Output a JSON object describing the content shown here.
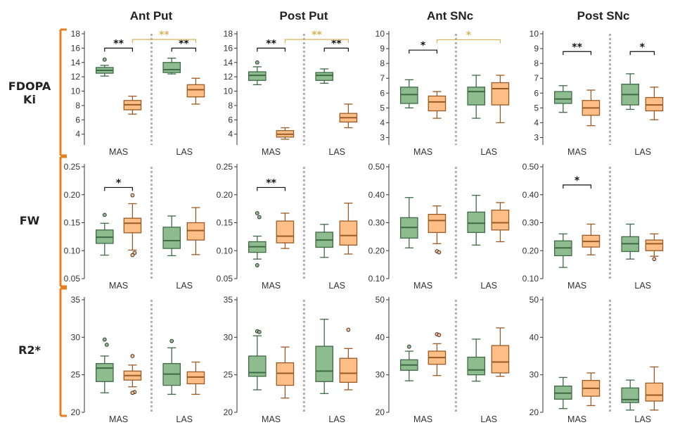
{
  "columns": [
    "Ant Put",
    "Post Put",
    "Ant SNc",
    "Post SNc"
  ],
  "row_label_lines": [
    [
      "FDOPA",
      "Ki"
    ],
    [
      "FW"
    ],
    [
      "R2*"
    ]
  ],
  "colors": {
    "MAS": {
      "fill": "#8fbc8f",
      "stroke": "#3d6b45"
    },
    "LAS": {
      "fill": "#fdbf86",
      "stroke": "#9a5a26"
    },
    "row_bracket": "#e5801f",
    "between_group_sig": "#d9b25a",
    "within_group_sig": "#111111",
    "divider": "#b0b0b0"
  },
  "chart_data": [
    {
      "type": "box",
      "row": "FDOPA Ki",
      "column": "Ant Put",
      "ylim": [
        2.5,
        18
      ],
      "yticks": [
        "4",
        "6",
        "8",
        "10",
        "12",
        "14",
        "16",
        "18"
      ],
      "groups": [
        "MAS",
        "LAS"
      ],
      "boxes": [
        {
          "group": "MAS",
          "series": "MAS",
          "min": 12.1,
          "q1": 12.5,
          "median": 12.9,
          "q3": 13.3,
          "max": 13.6,
          "outliers": [
            14.4
          ]
        },
        {
          "group": "MAS",
          "series": "LAS",
          "min": 6.8,
          "q1": 7.4,
          "median": 8.1,
          "q3": 8.7,
          "max": 9.3,
          "outliers": []
        },
        {
          "group": "LAS",
          "series": "MAS",
          "min": 12.4,
          "q1": 12.6,
          "median": 13.0,
          "q3": 14.0,
          "max": 14.6,
          "outliers": []
        },
        {
          "group": "LAS",
          "series": "LAS",
          "min": 8.2,
          "q1": 9.2,
          "median": 10.2,
          "q3": 10.9,
          "max": 11.8,
          "outliers": []
        }
      ],
      "annotations": [
        {
          "text": "**",
          "between": "MAS: MAS vs LAS",
          "style": "within",
          "y": 16.0
        },
        {
          "text": "**",
          "between": "LAS: MAS vs LAS",
          "style": "within",
          "y": 16.0
        },
        {
          "text": "**",
          "between": "MAS-LAS vs LAS-LAS",
          "style": "between",
          "y": 17.2
        }
      ]
    },
    {
      "type": "box",
      "row": "FDOPA Ki",
      "column": "Post Put",
      "ylim": [
        2.5,
        18
      ],
      "yticks": [
        "4",
        "6",
        "8",
        "10",
        "12",
        "14",
        "16",
        "18"
      ],
      "groups": [
        "MAS",
        "LAS"
      ],
      "boxes": [
        {
          "group": "MAS",
          "series": "MAS",
          "min": 10.9,
          "q1": 11.5,
          "median": 12.2,
          "q3": 12.7,
          "max": 13.4,
          "outliers": [
            14.0
          ]
        },
        {
          "group": "MAS",
          "series": "LAS",
          "min": 3.3,
          "q1": 3.6,
          "median": 4.0,
          "q3": 4.5,
          "max": 4.9,
          "outliers": []
        },
        {
          "group": "LAS",
          "series": "MAS",
          "min": 11.1,
          "q1": 11.5,
          "median": 12.2,
          "q3": 12.6,
          "max": 13.1,
          "outliers": []
        },
        {
          "group": "LAS",
          "series": "LAS",
          "min": 4.9,
          "q1": 5.7,
          "median": 6.3,
          "q3": 6.9,
          "max": 8.2,
          "outliers": []
        }
      ],
      "annotations": [
        {
          "text": "**",
          "between": "MAS: MAS vs LAS",
          "style": "within",
          "y": 16.0
        },
        {
          "text": "**",
          "between": "LAS: MAS vs LAS",
          "style": "within",
          "y": 16.0
        },
        {
          "text": "**",
          "between": "MAS-LAS vs LAS-LAS",
          "style": "between",
          "y": 17.2
        }
      ]
    },
    {
      "type": "box",
      "row": "FDOPA Ki",
      "column": "Ant SNc",
      "ylim": [
        2.5,
        10
      ],
      "yticks": [
        "3",
        "4",
        "5",
        "6",
        "7",
        "8",
        "9",
        "10"
      ],
      "groups": [
        "MAS",
        "LAS"
      ],
      "boxes": [
        {
          "group": "MAS",
          "series": "MAS",
          "min": 5.0,
          "q1": 5.3,
          "median": 5.9,
          "q3": 6.4,
          "max": 6.9,
          "outliers": []
        },
        {
          "group": "MAS",
          "series": "LAS",
          "min": 4.3,
          "q1": 4.8,
          "median": 5.4,
          "q3": 5.8,
          "max": 6.1,
          "outliers": []
        },
        {
          "group": "LAS",
          "series": "MAS",
          "min": 4.3,
          "q1": 5.2,
          "median": 6.1,
          "q3": 6.4,
          "max": 7.2,
          "outliers": []
        },
        {
          "group": "LAS",
          "series": "LAS",
          "min": 4.0,
          "q1": 5.2,
          "median": 6.3,
          "q3": 6.7,
          "max": 7.2,
          "outliers": []
        }
      ],
      "annotations": [
        {
          "text": "*",
          "between": "MAS: MAS vs LAS",
          "style": "within",
          "y": 8.9
        },
        {
          "text": "*",
          "between": "MAS-LAS vs LAS-LAS",
          "style": "between",
          "y": 9.6
        }
      ]
    },
    {
      "type": "box",
      "row": "FDOPA Ki",
      "column": "Post SNc",
      "ylim": [
        2.5,
        10
      ],
      "yticks": [
        "3",
        "4",
        "5",
        "6",
        "7",
        "8",
        "9",
        "10"
      ],
      "groups": [
        "MAS",
        "LAS"
      ],
      "boxes": [
        {
          "group": "MAS",
          "series": "MAS",
          "min": 4.7,
          "q1": 5.3,
          "median": 5.6,
          "q3": 6.1,
          "max": 6.5,
          "outliers": []
        },
        {
          "group": "MAS",
          "series": "LAS",
          "min": 3.8,
          "q1": 4.5,
          "median": 5.0,
          "q3": 5.5,
          "max": 6.2,
          "outliers": []
        },
        {
          "group": "LAS",
          "series": "MAS",
          "min": 4.9,
          "q1": 5.2,
          "median": 5.9,
          "q3": 6.6,
          "max": 7.3,
          "outliers": []
        },
        {
          "group": "LAS",
          "series": "LAS",
          "min": 4.2,
          "q1": 4.8,
          "median": 5.2,
          "q3": 5.7,
          "max": 6.4,
          "outliers": []
        }
      ],
      "annotations": [
        {
          "text": "**",
          "between": "MAS: MAS vs LAS",
          "style": "within",
          "y": 8.8
        },
        {
          "text": "*",
          "between": "LAS: MAS vs LAS",
          "style": "within",
          "y": 8.8
        }
      ]
    },
    {
      "type": "box",
      "row": "FW",
      "column": "Ant Put",
      "ylim": [
        0.05,
        0.25
      ],
      "yticks": [
        "0.05",
        "0.10",
        "0.15",
        "0.20",
        "0.25"
      ],
      "groups": [
        "MAS",
        "LAS"
      ],
      "boxes": [
        {
          "group": "MAS",
          "series": "MAS",
          "min": 0.092,
          "q1": 0.113,
          "median": 0.124,
          "q3": 0.137,
          "max": 0.149,
          "outliers": [
            0.164
          ]
        },
        {
          "group": "MAS",
          "series": "LAS",
          "min": 0.101,
          "q1": 0.132,
          "median": 0.149,
          "q3": 0.158,
          "max": 0.184,
          "outliers": [
            0.199,
            0.096,
            0.092
          ]
        },
        {
          "group": "LAS",
          "series": "MAS",
          "min": 0.091,
          "q1": 0.104,
          "median": 0.118,
          "q3": 0.142,
          "max": 0.162,
          "outliers": []
        },
        {
          "group": "LAS",
          "series": "LAS",
          "min": 0.093,
          "q1": 0.119,
          "median": 0.136,
          "q3": 0.15,
          "max": 0.177,
          "outliers": []
        }
      ],
      "annotations": [
        {
          "text": "*",
          "between": "MAS: MAS vs LAS",
          "style": "within",
          "y": 0.213
        }
      ]
    },
    {
      "type": "box",
      "row": "FW",
      "column": "Post Put",
      "ylim": [
        0.05,
        0.25
      ],
      "yticks": [
        "0.05",
        "0.10",
        "0.15",
        "0.20",
        "0.25"
      ],
      "groups": [
        "MAS",
        "LAS"
      ],
      "boxes": [
        {
          "group": "MAS",
          "series": "MAS",
          "min": 0.085,
          "q1": 0.097,
          "median": 0.107,
          "q3": 0.116,
          "max": 0.126,
          "outliers": [
            0.167,
            0.16,
            0.074
          ]
        },
        {
          "group": "MAS",
          "series": "LAS",
          "min": 0.104,
          "q1": 0.114,
          "median": 0.126,
          "q3": 0.153,
          "max": 0.167,
          "outliers": []
        },
        {
          "group": "LAS",
          "series": "MAS",
          "min": 0.088,
          "q1": 0.106,
          "median": 0.119,
          "q3": 0.133,
          "max": 0.147,
          "outliers": []
        },
        {
          "group": "LAS",
          "series": "LAS",
          "min": 0.094,
          "q1": 0.11,
          "median": 0.127,
          "q3": 0.153,
          "max": 0.185,
          "outliers": []
        }
      ],
      "annotations": [
        {
          "text": "**",
          "between": "MAS: MAS vs LAS",
          "style": "within",
          "y": 0.213
        }
      ]
    },
    {
      "type": "box",
      "row": "FW",
      "column": "Ant SNc",
      "ylim": [
        0.1,
        0.5
      ],
      "yticks": [
        "0.10",
        "0.20",
        "0.30",
        "0.40",
        "0.50"
      ],
      "groups": [
        "MAS",
        "LAS"
      ],
      "boxes": [
        {
          "group": "MAS",
          "series": "MAS",
          "min": 0.21,
          "q1": 0.245,
          "median": 0.283,
          "q3": 0.318,
          "max": 0.39,
          "outliers": []
        },
        {
          "group": "MAS",
          "series": "LAS",
          "min": 0.225,
          "q1": 0.265,
          "median": 0.308,
          "q3": 0.33,
          "max": 0.36,
          "outliers": [
            0.198,
            0.194
          ]
        },
        {
          "group": "LAS",
          "series": "MAS",
          "min": 0.22,
          "q1": 0.265,
          "median": 0.298,
          "q3": 0.338,
          "max": 0.398,
          "outliers": []
        },
        {
          "group": "LAS",
          "series": "LAS",
          "min": 0.232,
          "q1": 0.274,
          "median": 0.3,
          "q3": 0.345,
          "max": 0.372,
          "outliers": []
        }
      ],
      "annotations": []
    },
    {
      "type": "box",
      "row": "FW",
      "column": "Post SNc",
      "ylim": [
        0.1,
        0.5
      ],
      "yticks": [
        "0.10",
        "0.20",
        "0.30",
        "0.40",
        "0.50"
      ],
      "groups": [
        "MAS",
        "LAS"
      ],
      "boxes": [
        {
          "group": "MAS",
          "series": "MAS",
          "min": 0.14,
          "q1": 0.182,
          "median": 0.21,
          "q3": 0.235,
          "max": 0.26,
          "outliers": []
        },
        {
          "group": "MAS",
          "series": "LAS",
          "min": 0.185,
          "q1": 0.213,
          "median": 0.233,
          "q3": 0.255,
          "max": 0.295,
          "outliers": []
        },
        {
          "group": "LAS",
          "series": "MAS",
          "min": 0.17,
          "q1": 0.197,
          "median": 0.225,
          "q3": 0.25,
          "max": 0.295,
          "outliers": []
        },
        {
          "group": "LAS",
          "series": "LAS",
          "min": 0.18,
          "q1": 0.2,
          "median": 0.225,
          "q3": 0.238,
          "max": 0.26,
          "outliers": [
            0.17
          ]
        }
      ],
      "annotations": [
        {
          "text": "*",
          "between": "MAS: MAS vs LAS",
          "style": "within",
          "y": 0.435
        }
      ]
    },
    {
      "type": "box",
      "row": "R2*",
      "column": "Ant Put",
      "ylim": [
        20,
        35
      ],
      "yticks": [
        "20",
        "25",
        "30",
        "35"
      ],
      "groups": [
        "MAS",
        "LAS"
      ],
      "boxes": [
        {
          "group": "MAS",
          "series": "MAS",
          "min": 22.6,
          "q1": 24.1,
          "median": 25.9,
          "q3": 26.5,
          "max": 27.5,
          "outliers": [
            29.7,
            29.0
          ]
        },
        {
          "group": "MAS",
          "series": "LAS",
          "min": 23.4,
          "q1": 24.3,
          "median": 24.9,
          "q3": 25.5,
          "max": 26.3,
          "outliers": [
            27.5,
            22.7,
            22.6
          ]
        },
        {
          "group": "LAS",
          "series": "MAS",
          "min": 22.4,
          "q1": 23.6,
          "median": 25.1,
          "q3": 26.5,
          "max": 28.6,
          "outliers": [
            29.5
          ]
        },
        {
          "group": "LAS",
          "series": "LAS",
          "min": 22.4,
          "q1": 23.8,
          "median": 24.7,
          "q3": 25.4,
          "max": 26.7,
          "outliers": []
        }
      ],
      "annotations": []
    },
    {
      "type": "box",
      "row": "R2*",
      "column": "Post Put",
      "ylim": [
        20,
        35
      ],
      "yticks": [
        "20",
        "25",
        "30",
        "35"
      ],
      "groups": [
        "MAS",
        "LAS"
      ],
      "boxes": [
        {
          "group": "MAS",
          "series": "MAS",
          "min": 23.0,
          "q1": 24.8,
          "median": 25.3,
          "q3": 27.5,
          "max": 30.2,
          "outliers": [
            30.8,
            30.7
          ]
        },
        {
          "group": "MAS",
          "series": "LAS",
          "min": 21.9,
          "q1": 23.6,
          "median": 25.2,
          "q3": 26.6,
          "max": 28.7,
          "outliers": []
        },
        {
          "group": "LAS",
          "series": "MAS",
          "min": 22.5,
          "q1": 24.1,
          "median": 25.5,
          "q3": 28.8,
          "max": 32.4,
          "outliers": []
        },
        {
          "group": "LAS",
          "series": "LAS",
          "min": 23.0,
          "q1": 24.0,
          "median": 25.2,
          "q3": 27.2,
          "max": 28.5,
          "outliers": [
            31.0
          ]
        }
      ],
      "annotations": []
    },
    {
      "type": "box",
      "row": "R2*",
      "column": "Ant SNc",
      "ylim": [
        20,
        50
      ],
      "yticks": [
        "20",
        "30",
        "40",
        "50"
      ],
      "groups": [
        "MAS",
        "LAS"
      ],
      "boxes": [
        {
          "group": "MAS",
          "series": "MAS",
          "min": 28.4,
          "q1": 31.2,
          "median": 32.6,
          "q3": 34.0,
          "max": 36.3,
          "outliers": [
            37.5
          ]
        },
        {
          "group": "MAS",
          "series": "LAS",
          "min": 29.8,
          "q1": 32.8,
          "median": 34.6,
          "q3": 36.3,
          "max": 38.3,
          "outliers": [
            40.8,
            40.6
          ]
        },
        {
          "group": "LAS",
          "series": "MAS",
          "min": 28.3,
          "q1": 30.0,
          "median": 31.3,
          "q3": 34.7,
          "max": 39.5,
          "outliers": []
        },
        {
          "group": "LAS",
          "series": "LAS",
          "min": 29.6,
          "q1": 30.5,
          "median": 33.4,
          "q3": 37.8,
          "max": 42.5,
          "outliers": []
        }
      ],
      "annotations": []
    },
    {
      "type": "box",
      "row": "R2*",
      "column": "Post SNc",
      "ylim": [
        20,
        50
      ],
      "yticks": [
        "20",
        "30",
        "40",
        "50"
      ],
      "groups": [
        "MAS",
        "LAS"
      ],
      "boxes": [
        {
          "group": "MAS",
          "series": "MAS",
          "min": 21.0,
          "q1": 23.5,
          "median": 25.1,
          "q3": 27.0,
          "max": 29.3,
          "outliers": []
        },
        {
          "group": "MAS",
          "series": "LAS",
          "min": 21.8,
          "q1": 24.3,
          "median": 26.4,
          "q3": 28.5,
          "max": 30.5,
          "outliers": []
        },
        {
          "group": "LAS",
          "series": "MAS",
          "min": 20.6,
          "q1": 22.6,
          "median": 23.4,
          "q3": 26.5,
          "max": 28.6,
          "outliers": []
        },
        {
          "group": "LAS",
          "series": "LAS",
          "min": 20.6,
          "q1": 23.0,
          "median": 24.6,
          "q3": 27.8,
          "max": 32.1,
          "outliers": []
        }
      ],
      "annotations": []
    }
  ]
}
